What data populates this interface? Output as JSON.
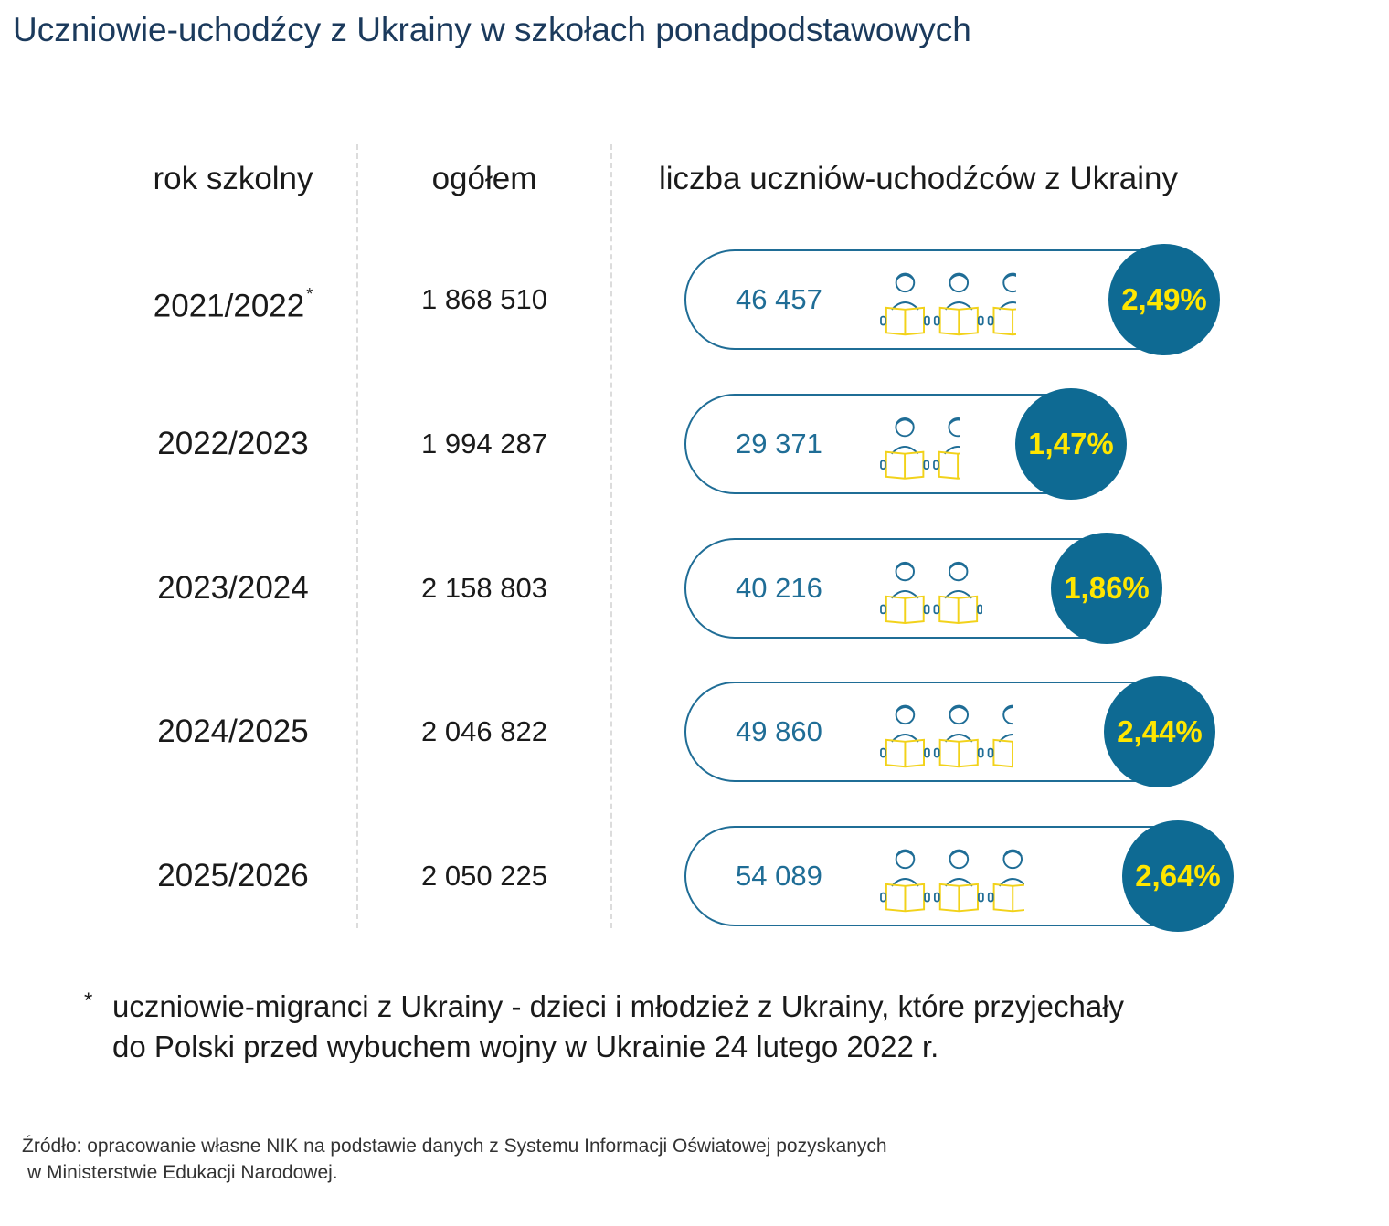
{
  "title": "Uczniowie-uchodźcy z Ukrainy w szkołach ponadpodstawowych",
  "chart_data": {
    "type": "table",
    "columns": [
      "rok szkolny",
      "ogółem",
      "liczba uczniów-uchodźców z Ukrainy"
    ],
    "rows": [
      {
        "year": "2021/2022",
        "marker": "*",
        "total": "1 868 510",
        "refugees": "46 457",
        "share": "2,49%",
        "share_value": 2.49
      },
      {
        "year": "2022/2023",
        "marker": "",
        "total": "1 994 287",
        "refugees": "29 371",
        "share": "1,47%",
        "share_value": 1.47
      },
      {
        "year": "2023/2024",
        "marker": "",
        "total": "2 158 803",
        "refugees": "40 216",
        "share": "1,86%",
        "share_value": 1.86
      },
      {
        "year": "2024/2025",
        "marker": "",
        "total": "2 046 822",
        "refugees": "49 860",
        "share": "2,44%",
        "share_value": 2.44
      },
      {
        "year": "2025/2026",
        "marker": "",
        "total": "2 050 225",
        "refugees": "54 089",
        "share": "2,64%",
        "share_value": 2.64
      }
    ]
  },
  "footnote": {
    "marker": "*",
    "line1": "uczniowie-migranci z Ukrainy - dzieci i młodzież z Ukrainy, które przyjechały",
    "line2": "do Polski przed wybuchem wojny w Ukrainie 24 lutego 2022 r."
  },
  "source": {
    "line1": "Źródło: opracowanie własne NIK na podstawie danych z Systemu Informacji Oświatowej pozyskanych",
    "line2": "w Ministerstwie Edukacji Narodowej."
  },
  "icon": "student-reading-icon",
  "colors": {
    "title": "#1b3a5c",
    "pill_border": "#1f6d96",
    "circle": "#0e6a93",
    "percent_text": "#ffe600",
    "icon_head": "#1f6d96",
    "icon_book": "#f2d21a"
  }
}
